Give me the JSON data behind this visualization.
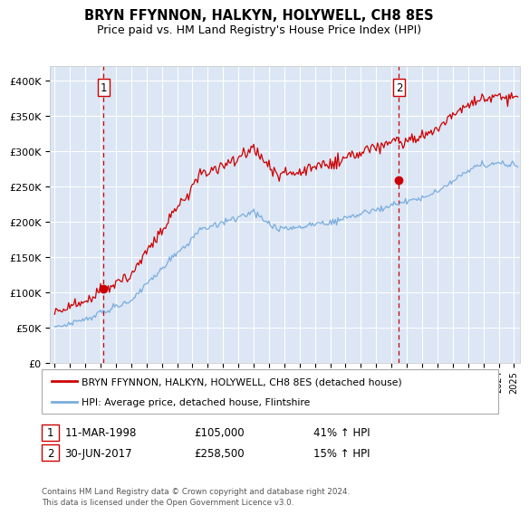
{
  "title": "BRYN FFYNNON, HALKYN, HOLYWELL, CH8 8ES",
  "subtitle": "Price paid vs. HM Land Registry's House Price Index (HPI)",
  "ylim": [
    0,
    420000
  ],
  "xlim_start": 1994.7,
  "xlim_end": 2025.4,
  "sale1_date": 1998.19,
  "sale1_price": 105000,
  "sale2_date": 2017.49,
  "sale2_price": 258500,
  "sale1_text": "11-MAR-1998",
  "sale1_amount": "£105,000",
  "sale1_hpi": "41% ↑ HPI",
  "sale2_text": "30-JUN-2017",
  "sale2_amount": "£258,500",
  "sale2_hpi": "15% ↑ HPI",
  "legend_line1": "BRYN FFYNNON, HALKYN, HOLYWELL, CH8 8ES (detached house)",
  "legend_line2": "HPI: Average price, detached house, Flintshire",
  "footer": "Contains HM Land Registry data © Crown copyright and database right 2024.\nThis data is licensed under the Open Government Licence v3.0.",
  "hpi_color": "#7aaddd",
  "price_color": "#cc0000",
  "background_plot": "#dce6f5",
  "background_fig": "#ffffff",
  "grid_color": "#ffffff",
  "dashed_line_color": "#cc0000",
  "marker_size": 6
}
